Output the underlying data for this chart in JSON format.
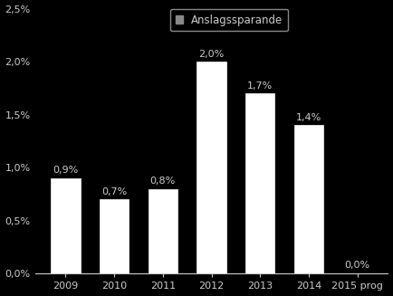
{
  "categories": [
    "2009",
    "2010",
    "2011",
    "2012",
    "2013",
    "2014",
    "2015 prog"
  ],
  "values": [
    0.9,
    0.7,
    0.8,
    2.0,
    1.7,
    1.4,
    0.0
  ],
  "labels": [
    "0,9%",
    "0,7%",
    "0,8%",
    "2,0%",
    "1,7%",
    "1,4%",
    "0,0%"
  ],
  "bar_color": "#ffffff",
  "bar_edgecolor": "#ffffff",
  "background_color": "#000000",
  "text_color": "#cccccc",
  "legend_label": "Anslagssparande",
  "legend_marker_color": "#888888",
  "legend_edge_color": "#888888",
  "ylim": [
    0,
    2.5
  ],
  "yticks": [
    0.0,
    0.5,
    1.0,
    1.5,
    2.0,
    2.5
  ],
  "ytick_labels": [
    "0,0%",
    "0,5%",
    "1,0%",
    "1,5%",
    "2,0%",
    "2,5%"
  ],
  "label_fontsize": 8.0,
  "tick_fontsize": 8.0,
  "legend_fontsize": 8.5,
  "bar_linewidth": 0.5,
  "bar_width": 0.6
}
